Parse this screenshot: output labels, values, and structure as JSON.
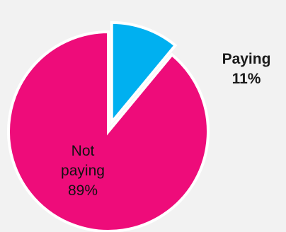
{
  "chart_data": {
    "type": "pie",
    "title": "",
    "slices": [
      {
        "label": "Paying",
        "value": 11,
        "value_label": "11%",
        "color": "#00b0f0",
        "exploded": true
      },
      {
        "label": "Not paying",
        "value": 89,
        "value_label": "89%",
        "color": "#ee0c7a",
        "exploded": false
      }
    ],
    "start": "12 o'clock",
    "direction": "clockwise",
    "legend": "none",
    "slice_border_color": "#ffffff"
  }
}
